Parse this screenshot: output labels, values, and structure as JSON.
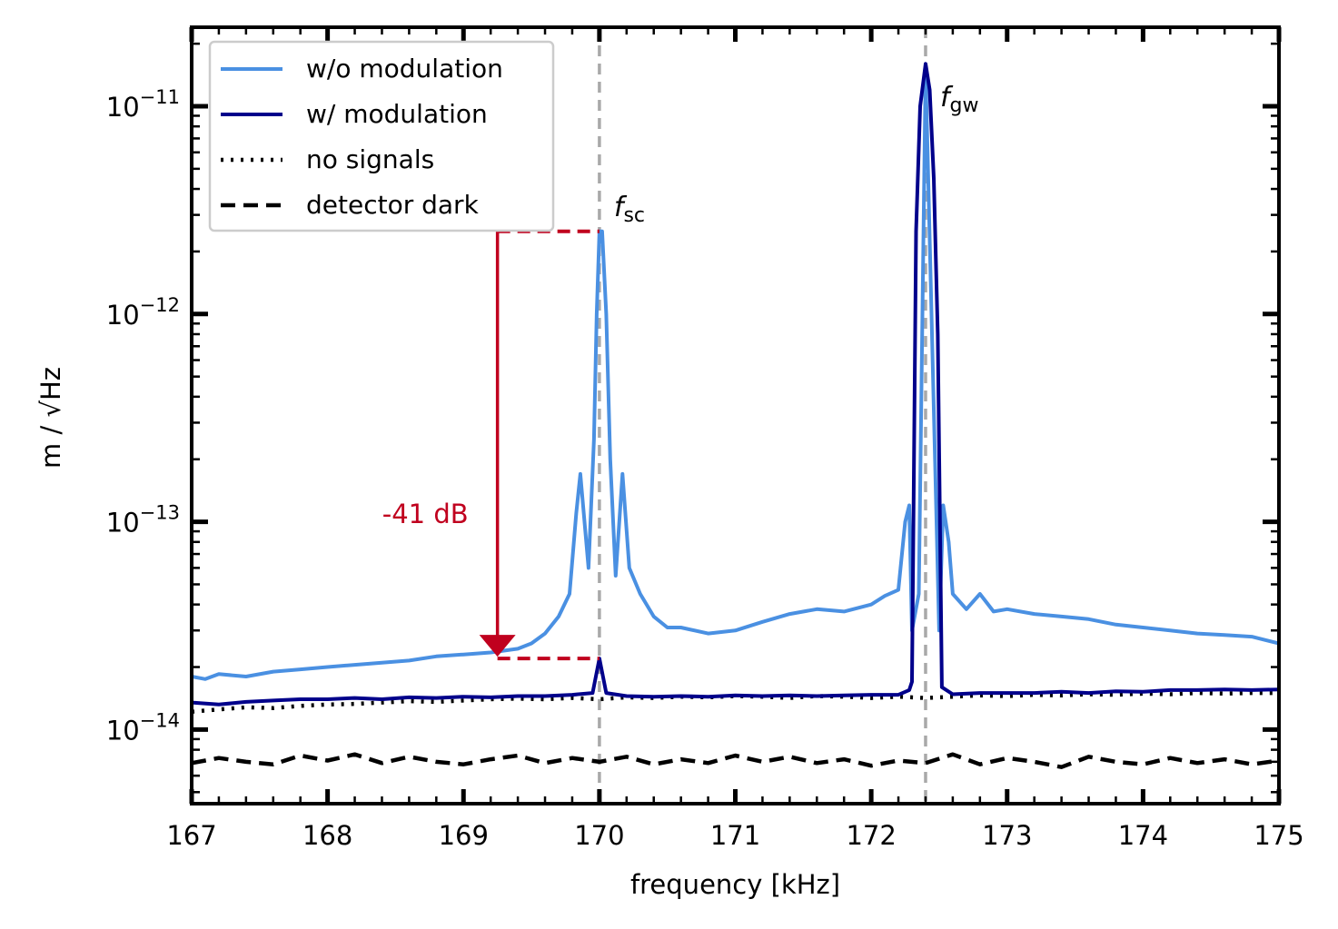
{
  "chart_data": {
    "type": "line",
    "title": "",
    "xlabel": "frequency [kHz]",
    "ylabel": "m / √Hz",
    "xlim": [
      167,
      175
    ],
    "ylim": [
      4.4e-15,
      2.4e-11
    ],
    "yscale": "log",
    "xticks": [
      167,
      168,
      169,
      170,
      171,
      172,
      173,
      174,
      175
    ],
    "xtick_labels": [
      "167",
      "168",
      "169",
      "170",
      "171",
      "172",
      "173",
      "174",
      "175"
    ],
    "yticks": [
      1e-14,
      1e-13,
      1e-12,
      1e-11
    ],
    "ytick_labels": [
      {
        "base": "10",
        "exp": "−14"
      },
      {
        "base": "10",
        "exp": "−13"
      },
      {
        "base": "10",
        "exp": "−12"
      },
      {
        "base": "10",
        "exp": "−11"
      }
    ],
    "grid": false,
    "legend_position": "top-left",
    "series": [
      {
        "name": "w/o modulation",
        "color": "#4a90e2",
        "style": "solid",
        "points": [
          [
            167.0,
            1.8e-14
          ],
          [
            167.1,
            1.75e-14
          ],
          [
            167.2,
            1.85e-14
          ],
          [
            167.4,
            1.8e-14
          ],
          [
            167.6,
            1.9e-14
          ],
          [
            167.8,
            1.95e-14
          ],
          [
            168.0,
            2e-14
          ],
          [
            168.2,
            2.05e-14
          ],
          [
            168.4,
            2.1e-14
          ],
          [
            168.6,
            2.15e-14
          ],
          [
            168.8,
            2.25e-14
          ],
          [
            169.0,
            2.3e-14
          ],
          [
            169.2,
            2.35e-14
          ],
          [
            169.4,
            2.45e-14
          ],
          [
            169.5,
            2.6e-14
          ],
          [
            169.6,
            2.9e-14
          ],
          [
            169.7,
            3.5e-14
          ],
          [
            169.78,
            4.5e-14
          ],
          [
            169.83,
            1.1e-13
          ],
          [
            169.86,
            1.7e-13
          ],
          [
            169.92,
            6e-14
          ],
          [
            169.96,
            2.5e-13
          ],
          [
            169.98,
            1e-12
          ],
          [
            170.0,
            2.5e-12
          ],
          [
            170.02,
            2.5e-12
          ],
          [
            170.05,
            1e-12
          ],
          [
            170.08,
            2e-13
          ],
          [
            170.12,
            5.5e-14
          ],
          [
            170.17,
            1.7e-13
          ],
          [
            170.22,
            6e-14
          ],
          [
            170.3,
            4.5e-14
          ],
          [
            170.4,
            3.5e-14
          ],
          [
            170.5,
            3.1e-14
          ],
          [
            170.6,
            3.1e-14
          ],
          [
            170.8,
            2.9e-14
          ],
          [
            171.0,
            3e-14
          ],
          [
            171.2,
            3.3e-14
          ],
          [
            171.4,
            3.6e-14
          ],
          [
            171.6,
            3.8e-14
          ],
          [
            171.8,
            3.7e-14
          ],
          [
            172.0,
            4e-14
          ],
          [
            172.1,
            4.4e-14
          ],
          [
            172.2,
            4.7e-14
          ],
          [
            172.25,
            1e-13
          ],
          [
            172.28,
            1.2e-13
          ],
          [
            172.3,
            3e-14
          ],
          [
            172.35,
            4.5e-14
          ],
          [
            172.4,
            1.5e-11
          ],
          [
            172.5,
            3e-14
          ],
          [
            172.53,
            1.2e-13
          ],
          [
            172.57,
            8e-14
          ],
          [
            172.6,
            4.5e-14
          ],
          [
            172.7,
            3.8e-14
          ],
          [
            172.8,
            4.5e-14
          ],
          [
            172.9,
            3.7e-14
          ],
          [
            173.0,
            3.8e-14
          ],
          [
            173.2,
            3.6e-14
          ],
          [
            173.4,
            3.5e-14
          ],
          [
            173.6,
            3.4e-14
          ],
          [
            173.8,
            3.2e-14
          ],
          [
            174.0,
            3.1e-14
          ],
          [
            174.2,
            3e-14
          ],
          [
            174.4,
            2.9e-14
          ],
          [
            174.6,
            2.85e-14
          ],
          [
            174.8,
            2.8e-14
          ],
          [
            175.0,
            2.6e-14
          ]
        ]
      },
      {
        "name": "w/ modulation",
        "color": "#00008b",
        "style": "solid",
        "points": [
          [
            167.0,
            1.35e-14
          ],
          [
            167.2,
            1.32e-14
          ],
          [
            167.4,
            1.36e-14
          ],
          [
            167.6,
            1.38e-14
          ],
          [
            167.8,
            1.4e-14
          ],
          [
            168.0,
            1.4e-14
          ],
          [
            168.2,
            1.42e-14
          ],
          [
            168.4,
            1.4e-14
          ],
          [
            168.6,
            1.43e-14
          ],
          [
            168.8,
            1.42e-14
          ],
          [
            169.0,
            1.44e-14
          ],
          [
            169.2,
            1.43e-14
          ],
          [
            169.4,
            1.45e-14
          ],
          [
            169.6,
            1.45e-14
          ],
          [
            169.8,
            1.47e-14
          ],
          [
            169.95,
            1.5e-14
          ],
          [
            170.0,
            2.2e-14
          ],
          [
            170.05,
            1.5e-14
          ],
          [
            170.2,
            1.45e-14
          ],
          [
            170.4,
            1.44e-14
          ],
          [
            170.6,
            1.45e-14
          ],
          [
            170.8,
            1.44e-14
          ],
          [
            171.0,
            1.46e-14
          ],
          [
            171.2,
            1.45e-14
          ],
          [
            171.4,
            1.46e-14
          ],
          [
            171.6,
            1.45e-14
          ],
          [
            171.8,
            1.46e-14
          ],
          [
            172.0,
            1.47e-14
          ],
          [
            172.2,
            1.47e-14
          ],
          [
            172.28,
            1.55e-14
          ],
          [
            172.3,
            1.7e-14
          ],
          [
            172.33,
            2.5e-12
          ],
          [
            172.36,
            1e-11
          ],
          [
            172.4,
            1.6e-11
          ],
          [
            172.43,
            1.2e-11
          ],
          [
            172.46,
            4.5e-12
          ],
          [
            172.49,
            8e-13
          ],
          [
            172.52,
            1.6e-14
          ],
          [
            172.6,
            1.48e-14
          ],
          [
            172.8,
            1.5e-14
          ],
          [
            173.0,
            1.5e-14
          ],
          [
            173.2,
            1.5e-14
          ],
          [
            173.4,
            1.52e-14
          ],
          [
            173.6,
            1.5e-14
          ],
          [
            173.8,
            1.53e-14
          ],
          [
            174.0,
            1.52e-14
          ],
          [
            174.2,
            1.55e-14
          ],
          [
            174.4,
            1.55e-14
          ],
          [
            174.6,
            1.56e-14
          ],
          [
            174.8,
            1.55e-14
          ],
          [
            175.0,
            1.56e-14
          ]
        ]
      },
      {
        "name": "no signals",
        "color": "#000000",
        "style": "dotted",
        "points": [
          [
            167.0,
            1.22e-14
          ],
          [
            167.2,
            1.25e-14
          ],
          [
            167.4,
            1.28e-14
          ],
          [
            167.6,
            1.27e-14
          ],
          [
            167.8,
            1.3e-14
          ],
          [
            168.0,
            1.32e-14
          ],
          [
            168.2,
            1.33e-14
          ],
          [
            168.4,
            1.35e-14
          ],
          [
            168.6,
            1.37e-14
          ],
          [
            168.8,
            1.36e-14
          ],
          [
            169.0,
            1.38e-14
          ],
          [
            169.2,
            1.4e-14
          ],
          [
            169.4,
            1.41e-14
          ],
          [
            169.6,
            1.4e-14
          ],
          [
            169.8,
            1.42e-14
          ],
          [
            170.0,
            1.4e-14
          ],
          [
            170.2,
            1.43e-14
          ],
          [
            170.4,
            1.42e-14
          ],
          [
            170.6,
            1.44e-14
          ],
          [
            170.8,
            1.43e-14
          ],
          [
            171.0,
            1.45e-14
          ],
          [
            171.2,
            1.44e-14
          ],
          [
            171.4,
            1.42e-14
          ],
          [
            171.6,
            1.45e-14
          ],
          [
            171.8,
            1.44e-14
          ],
          [
            172.0,
            1.42e-14
          ],
          [
            172.2,
            1.44e-14
          ],
          [
            172.4,
            1.42e-14
          ],
          [
            172.6,
            1.44e-14
          ],
          [
            172.8,
            1.46e-14
          ],
          [
            173.0,
            1.45e-14
          ],
          [
            173.2,
            1.47e-14
          ],
          [
            173.4,
            1.46e-14
          ],
          [
            173.6,
            1.48e-14
          ],
          [
            173.8,
            1.47e-14
          ],
          [
            174.0,
            1.49e-14
          ],
          [
            174.2,
            1.48e-14
          ],
          [
            174.4,
            1.5e-14
          ],
          [
            174.6,
            1.49e-14
          ],
          [
            174.8,
            1.5e-14
          ],
          [
            175.0,
            1.5e-14
          ]
        ]
      },
      {
        "name": "detector dark",
        "color": "#000000",
        "style": "dashed",
        "points": [
          [
            167.0,
            6.9e-15
          ],
          [
            167.2,
            7.3e-15
          ],
          [
            167.4,
            7e-15
          ],
          [
            167.6,
            6.8e-15
          ],
          [
            167.8,
            7.5e-15
          ],
          [
            168.0,
            7.1e-15
          ],
          [
            168.2,
            7.6e-15
          ],
          [
            168.4,
            6.9e-15
          ],
          [
            168.6,
            7.4e-15
          ],
          [
            168.8,
            7e-15
          ],
          [
            169.0,
            6.8e-15
          ],
          [
            169.2,
            7.2e-15
          ],
          [
            169.4,
            7.5e-15
          ],
          [
            169.6,
            6.9e-15
          ],
          [
            169.8,
            7.3e-15
          ],
          [
            170.0,
            7e-15
          ],
          [
            170.2,
            7.4e-15
          ],
          [
            170.4,
            6.8e-15
          ],
          [
            170.6,
            7.2e-15
          ],
          [
            170.8,
            6.9e-15
          ],
          [
            171.0,
            7.5e-15
          ],
          [
            171.2,
            7e-15
          ],
          [
            171.4,
            7.4e-15
          ],
          [
            171.6,
            6.9e-15
          ],
          [
            171.8,
            7.2e-15
          ],
          [
            172.0,
            6.7e-15
          ],
          [
            172.2,
            7.1e-15
          ],
          [
            172.4,
            6.9e-15
          ],
          [
            172.6,
            7.6e-15
          ],
          [
            172.8,
            6.8e-15
          ],
          [
            173.0,
            7.3e-15
          ],
          [
            173.2,
            7e-15
          ],
          [
            173.4,
            6.6e-15
          ],
          [
            173.6,
            7.4e-15
          ],
          [
            173.8,
            7e-15
          ],
          [
            174.0,
            6.8e-15
          ],
          [
            174.2,
            7.3e-15
          ],
          [
            174.4,
            6.9e-15
          ],
          [
            174.6,
            7.2e-15
          ],
          [
            174.8,
            6.8e-15
          ],
          [
            175.0,
            7.1e-15
          ]
        ]
      }
    ],
    "vlines": [
      {
        "x": 170.0,
        "label_main": "f",
        "label_sub": "sc",
        "color": "#a9a9a9"
      },
      {
        "x": 172.4,
        "label_main": "f",
        "label_sub": "gw",
        "color": "#a9a9a9"
      }
    ],
    "annotation": {
      "text": "-41 dB",
      "color": "#c0001e",
      "x_arrow": 169.25,
      "y_top": 2.5e-12,
      "y_bottom": 2.2e-14,
      "x_line_end": 170.0
    }
  }
}
